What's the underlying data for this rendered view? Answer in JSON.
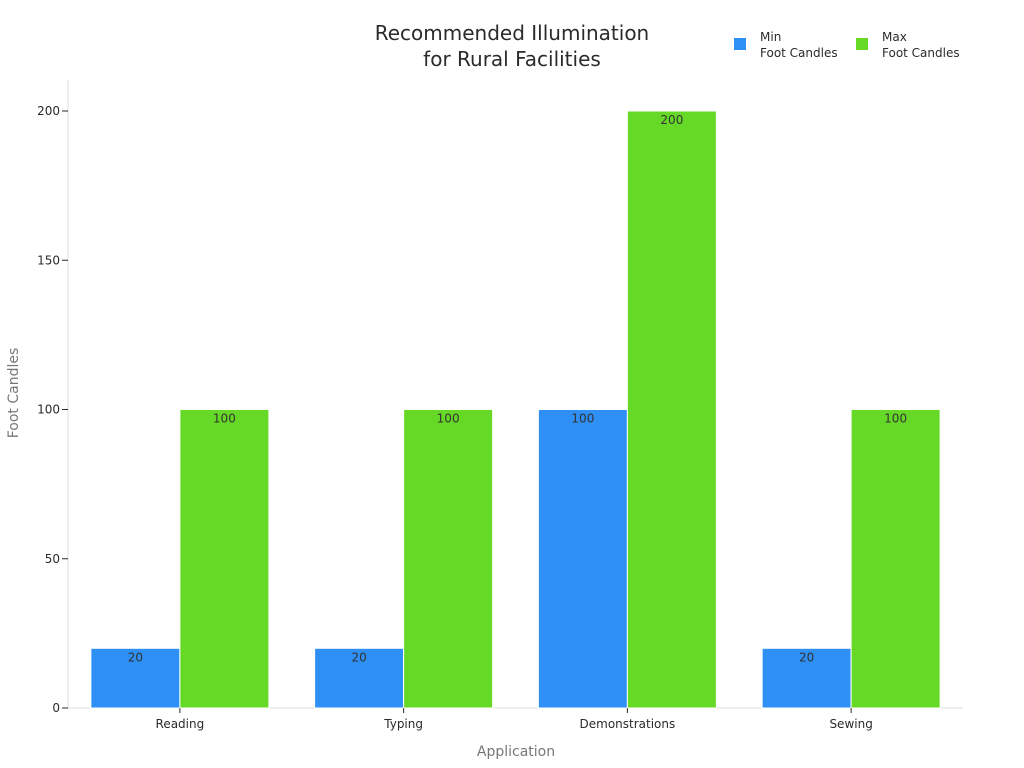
{
  "chart_data": {
    "type": "bar",
    "title": [
      "Recommended Illumination",
      "for Rural Facilities"
    ],
    "xlabel": "Application",
    "ylabel": "Foot Candles",
    "categories": [
      "Reading",
      "Typing",
      "Demonstrations",
      "Sewing"
    ],
    "series": [
      {
        "name": [
          "Min",
          "Foot Candles"
        ],
        "color": "#2e8ff5",
        "values": [
          20,
          20,
          100,
          20
        ]
      },
      {
        "name": [
          "Max",
          "Foot Candles"
        ],
        "color": "#66d927",
        "values": [
          100,
          100,
          200,
          100
        ]
      }
    ],
    "ylim": [
      0,
      210
    ],
    "yticks": [
      0,
      50,
      100,
      150,
      200
    ],
    "grid": false,
    "legend_position": "top-right",
    "data_labels": true
  }
}
